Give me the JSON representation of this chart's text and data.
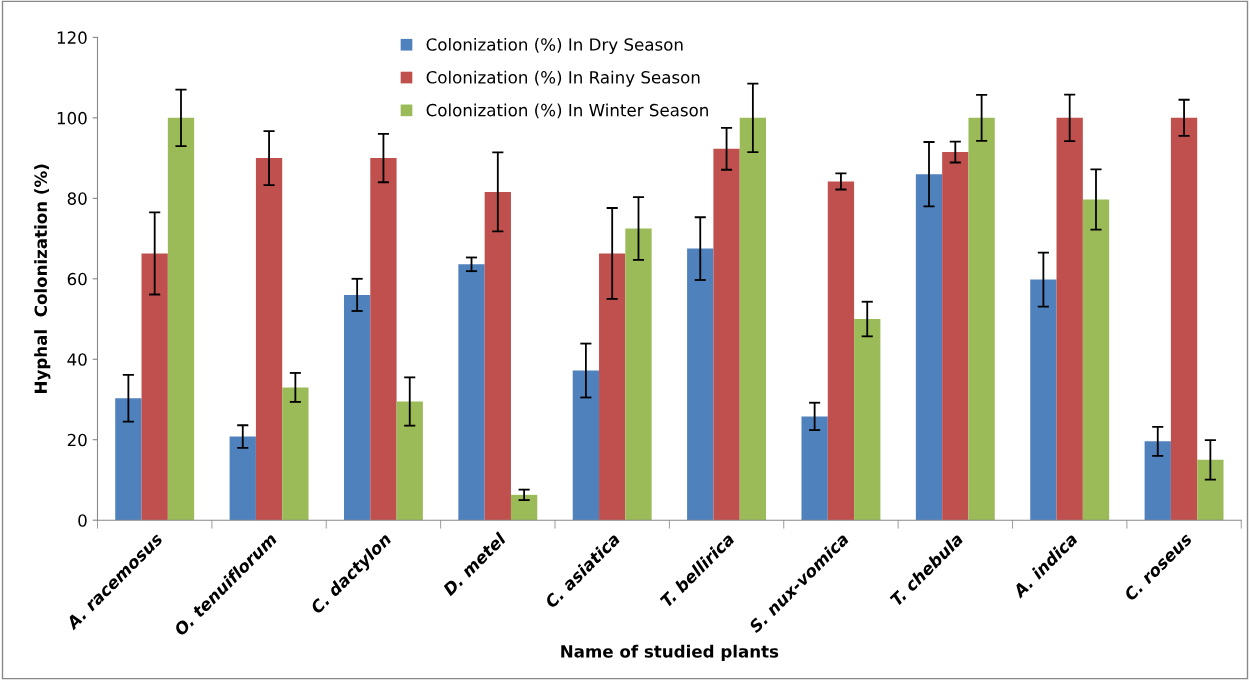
{
  "chart_data": {
    "type": "bar",
    "xlabel": "Name of studied plants",
    "ylabel": "Hyphal  Colonization (%)",
    "categories": [
      "A. racemosus",
      "O. tenuiflorum",
      "C. dactylon",
      "D. metel",
      "C. asiatica",
      "T. bellirica",
      "S. nux-vomica",
      "T. chebula",
      "A. indica",
      "C. roseus"
    ],
    "series": [
      {
        "name": "Colonization (%) In Dry Season",
        "color": "#4f81bd",
        "values": [
          30.3,
          20.8,
          56,
          63.6,
          37.2,
          67.5,
          25.8,
          86,
          59.8,
          19.6
        ],
        "errors": [
          5.8,
          2.8,
          4,
          1.7,
          6.7,
          7.8,
          3.4,
          8,
          6.7,
          3.6
        ]
      },
      {
        "name": "Colonization (%) In Rainy Season",
        "color": "#c0504d",
        "values": [
          66.3,
          90,
          90,
          81.6,
          66.3,
          92.3,
          84.2,
          91.5,
          100,
          100
        ],
        "errors": [
          10.2,
          6.7,
          6,
          9.8,
          11.3,
          5.2,
          2,
          2.6,
          5.8,
          4.5
        ]
      },
      {
        "name": "Colonization (%) In Winter Season",
        "color": "#9bbb59",
        "values": [
          100,
          33,
          29.5,
          6.3,
          72.5,
          100,
          50,
          100,
          79.7,
          15
        ],
        "errors": [
          7,
          3.6,
          6,
          1.3,
          7.8,
          8.5,
          4.3,
          5.7,
          7.5,
          4.9
        ]
      }
    ],
    "ylim": [
      0,
      120
    ],
    "yticks": [
      0,
      20,
      40,
      60,
      80,
      100,
      120
    ],
    "grid": false,
    "legend": "top"
  }
}
